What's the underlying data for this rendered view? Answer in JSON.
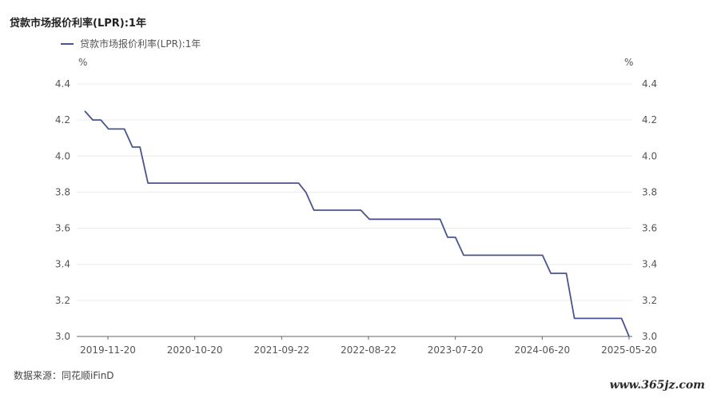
{
  "chart_data": {
    "type": "line",
    "title": "贷款市场报价利率(LPR):1年",
    "legend": "贷款市场报价利率(LPR):1年",
    "y_unit_left": "%",
    "y_unit_right": "%",
    "ylim": [
      3.0,
      4.4
    ],
    "y_ticks": [
      "4.4",
      "4.2",
      "4.0",
      "3.8",
      "3.6",
      "3.4",
      "3.2",
      "3.0"
    ],
    "x_ticks": [
      "2019-11-20",
      "2020-10-20",
      "2021-09-22",
      "2022-08-22",
      "2023-07-20",
      "2024-06-20",
      "2025-05-20"
    ],
    "grid": true,
    "legend_position": "top-left",
    "series": [
      {
        "name": "贷款市场报价利率(LPR):1年",
        "color": "#4a5490",
        "x": [
          "2019-08-20",
          "2019-09-20",
          "2019-10-21",
          "2019-11-20",
          "2019-12-20",
          "2020-01-20",
          "2020-02-20",
          "2020-03-20",
          "2020-04-20",
          "2020-05-20",
          "2021-11-22",
          "2021-12-20",
          "2022-01-20",
          "2022-07-20",
          "2022-08-22",
          "2023-05-22",
          "2023-06-20",
          "2023-07-20",
          "2023-08-21",
          "2024-06-20",
          "2024-07-22",
          "2024-08-20",
          "2024-09-20",
          "2024-10-21",
          "2025-04-21",
          "2025-05-20"
        ],
        "values": [
          4.25,
          4.2,
          4.2,
          4.15,
          4.15,
          4.15,
          4.05,
          4.05,
          3.85,
          3.85,
          3.85,
          3.8,
          3.7,
          3.7,
          3.65,
          3.65,
          3.55,
          3.55,
          3.45,
          3.45,
          3.35,
          3.35,
          3.35,
          3.1,
          3.1,
          3.0
        ]
      }
    ]
  },
  "source_label": "数据来源：同花顺iFinD",
  "watermark": "www.365jz.com"
}
